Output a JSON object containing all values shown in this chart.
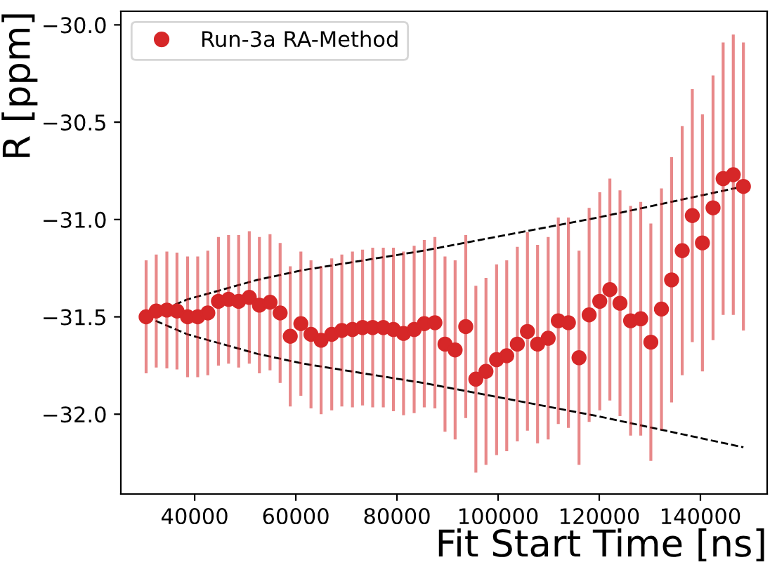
{
  "chart_data": {
    "type": "scatter",
    "xlabel": "Fit Start Time [ns]",
    "ylabel": "R [ppm]",
    "xlim": [
      25400,
      153200
    ],
    "ylim": [
      -32.41,
      -29.93
    ],
    "xticks": [
      40000,
      60000,
      80000,
      100000,
      120000,
      140000
    ],
    "yticks": [
      {
        "value": -32.0,
        "label": "−32.0"
      },
      {
        "value": -31.5,
        "label": "−31.5"
      },
      {
        "value": -31.0,
        "label": "−31.0"
      },
      {
        "value": -30.5,
        "label": "−30.5"
      },
      {
        "value": -30.0,
        "label": "−30.0"
      }
    ],
    "grid": false,
    "legend": "top left",
    "x": [
      30400,
      32400,
      34500,
      36500,
      38600,
      40600,
      42600,
      44700,
      46700,
      48700,
      50800,
      52800,
      54900,
      56900,
      58900,
      61000,
      63000,
      65000,
      67100,
      69100,
      71200,
      73200,
      75200,
      77300,
      79300,
      81300,
      83400,
      85400,
      87500,
      89500,
      91500,
      93600,
      95600,
      97600,
      99700,
      101700,
      103800,
      105800,
      107800,
      109900,
      111900,
      113900,
      116000,
      118000,
      120100,
      122100,
      124100,
      126200,
      128200,
      130200,
      132300,
      134300,
      136400,
      138400,
      140400,
      142500,
      144500,
      146500,
      148500
    ],
    "series": [
      {
        "name": "Run-3a RA-Method",
        "color": "#d62728",
        "marker": "circle",
        "values": [
          -31.5,
          -31.47,
          -31.465,
          -31.47,
          -31.5,
          -31.5,
          -31.48,
          -31.42,
          -31.41,
          -31.42,
          -31.4,
          -31.44,
          -31.425,
          -31.48,
          -31.6,
          -31.535,
          -31.59,
          -31.62,
          -31.59,
          -31.57,
          -31.565,
          -31.555,
          -31.555,
          -31.555,
          -31.565,
          -31.585,
          -31.565,
          -31.535,
          -31.53,
          -31.64,
          -31.67,
          -31.55,
          -31.82,
          -31.78,
          -31.72,
          -31.7,
          -31.64,
          -31.575,
          -31.64,
          -31.61,
          -31.52,
          -31.53,
          -31.71,
          -31.49,
          -31.42,
          -31.36,
          -31.43,
          -31.52,
          -31.51,
          -31.63,
          -31.46,
          -31.31,
          -31.16,
          -30.98,
          -31.12,
          -30.94,
          -30.79,
          -30.77,
          -30.83
        ],
        "errors": [
          0.29,
          0.29,
          0.3,
          0.3,
          0.31,
          0.31,
          0.32,
          0.33,
          0.33,
          0.34,
          0.34,
          0.35,
          0.35,
          0.36,
          0.36,
          0.37,
          0.38,
          0.38,
          0.39,
          0.39,
          0.4,
          0.4,
          0.41,
          0.41,
          0.42,
          0.42,
          0.43,
          0.43,
          0.44,
          0.45,
          0.46,
          0.47,
          0.48,
          0.48,
          0.49,
          0.49,
          0.5,
          0.51,
          0.51,
          0.52,
          0.53,
          0.54,
          0.55,
          0.55,
          0.56,
          0.57,
          0.58,
          0.59,
          0.6,
          0.61,
          0.62,
          0.63,
          0.64,
          0.65,
          0.66,
          0.68,
          0.7,
          0.72,
          0.74
        ]
      },
      {
        "type": "line",
        "color": "#000000",
        "line_style": "dashed",
        "marker": "none",
        "x": [
          30400,
          38600,
          52400,
          61400,
          85300,
          119700,
          148500
        ],
        "values": [
          -31.5,
          -31.41,
          -31.31,
          -31.26,
          -31.16,
          -30.99,
          -30.83
        ]
      },
      {
        "type": "line",
        "color": "#000000",
        "line_style": "dashed",
        "marker": "none",
        "x": [
          30400,
          38600,
          52400,
          61400,
          85300,
          119700,
          148500
        ],
        "values": [
          -31.5,
          -31.59,
          -31.69,
          -31.74,
          -31.84,
          -32.01,
          -32.17
        ]
      }
    ]
  }
}
